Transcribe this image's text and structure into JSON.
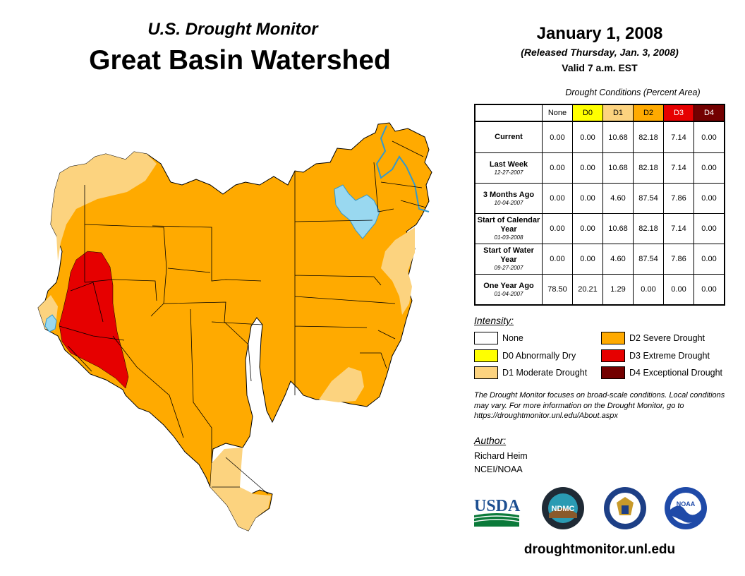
{
  "header": {
    "subtitle": "U.S. Drought Monitor",
    "title": "Great Basin Watershed",
    "date": "January 1, 2008",
    "released": "(Released Thursday, Jan. 3, 2008)",
    "valid": "Valid 7 a.m. EST"
  },
  "conditions": {
    "caption": "Drought Conditions (Percent Area)",
    "columns": [
      "None",
      "D0",
      "D1",
      "D2",
      "D3",
      "D4"
    ],
    "column_colors": [
      "#ffffff",
      "#ffff00",
      "#fcd37f",
      "#ffaa00",
      "#e60000",
      "#730000"
    ],
    "rows": [
      {
        "label": "Current",
        "date": "",
        "values": [
          "0.00",
          "0.00",
          "10.68",
          "82.18",
          "7.14",
          "0.00"
        ]
      },
      {
        "label": "Last Week",
        "date": "12-27-2007",
        "values": [
          "0.00",
          "0.00",
          "10.68",
          "82.18",
          "7.14",
          "0.00"
        ]
      },
      {
        "label": "3 Months Ago",
        "date": "10-04-2007",
        "values": [
          "0.00",
          "0.00",
          "4.60",
          "87.54",
          "7.86",
          "0.00"
        ]
      },
      {
        "label": "Start of Calendar Year",
        "date": "01-03-2008",
        "values": [
          "0.00",
          "0.00",
          "10.68",
          "82.18",
          "7.14",
          "0.00"
        ]
      },
      {
        "label": "Start of Water Year",
        "date": "09-27-2007",
        "values": [
          "0.00",
          "0.00",
          "4.60",
          "87.54",
          "7.86",
          "0.00"
        ]
      },
      {
        "label": "One Year Ago",
        "date": "01-04-2007",
        "values": [
          "78.50",
          "20.21",
          "1.29",
          "0.00",
          "0.00",
          "0.00"
        ]
      }
    ]
  },
  "legend": {
    "heading": "Intensity:",
    "items": [
      {
        "label": "None",
        "color": "#ffffff"
      },
      {
        "label": "D0 Abnormally Dry",
        "color": "#ffff00"
      },
      {
        "label": "D1 Moderate Drought",
        "color": "#fcd37f"
      },
      {
        "label": "D2 Severe Drought",
        "color": "#ffaa00"
      },
      {
        "label": "D3 Extreme Drought",
        "color": "#e60000"
      },
      {
        "label": "D4 Exceptional Drought",
        "color": "#730000"
      }
    ]
  },
  "note": "The Drought Monitor focuses on broad-scale conditions. Local conditions may vary. For more information on the Drought Monitor, go to https://droughtmonitor.unl.edu/About.aspx",
  "author": {
    "heading": "Author:",
    "name": "Richard Heim",
    "org": "NCEI/NOAA"
  },
  "logos": {
    "usda": "USDA",
    "ndmc": "NDMC",
    "noaa": "NOAA"
  },
  "map_colors": {
    "d1": "#fcd37f",
    "d2": "#ffaa00",
    "d3": "#e60000",
    "water": "#99d8f0"
  },
  "url": "droughtmonitor.unl.edu"
}
